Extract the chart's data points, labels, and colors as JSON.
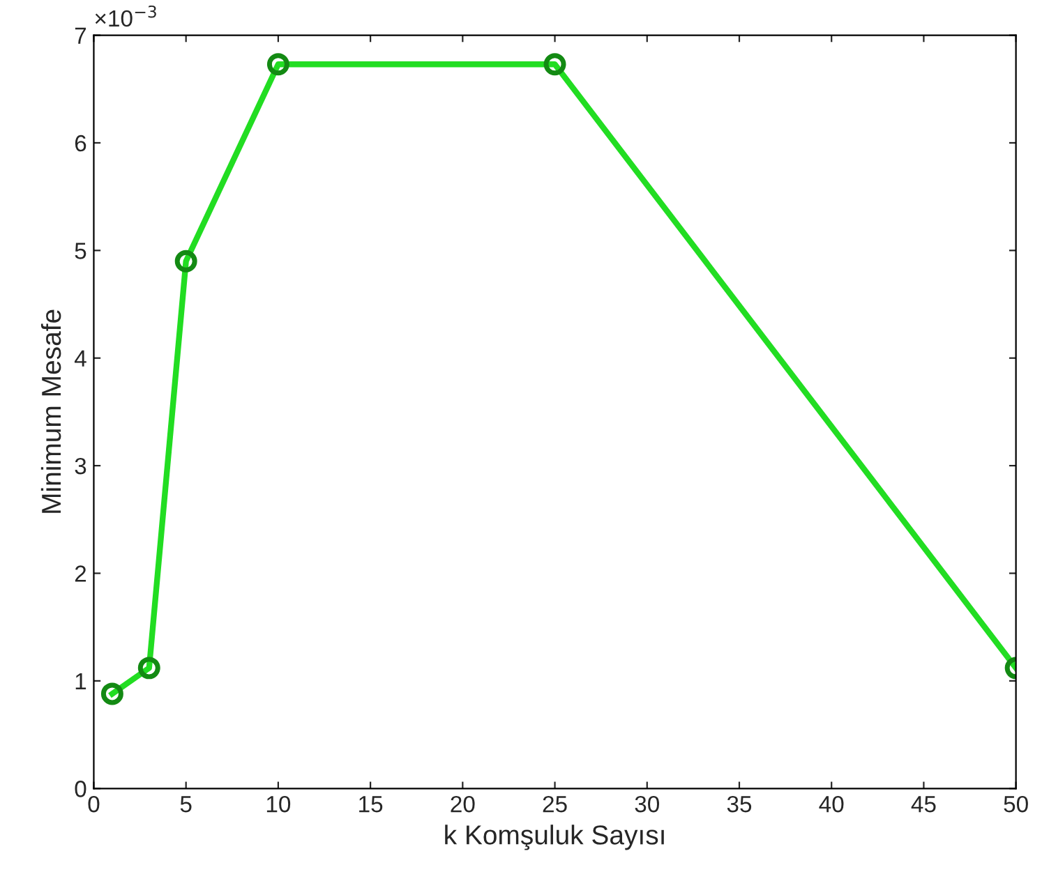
{
  "chart_data": {
    "type": "line",
    "xlabel": "k Komşuluk Sayısı",
    "ylabel": "Minimum Mesafe",
    "x": [
      1,
      3,
      5,
      10,
      25,
      50
    ],
    "series": [
      {
        "color": "#22dd22",
        "values": [
          0.88,
          1.12,
          4.9,
          6.73,
          6.73,
          1.12
        ]
      }
    ],
    "marker": "circle",
    "line_style": "solid",
    "grid": false,
    "legend": false,
    "xlim": [
      0,
      50
    ],
    "xticks": [
      0,
      5,
      10,
      15,
      20,
      25,
      30,
      35,
      40,
      45,
      50
    ],
    "ylim": [
      0,
      7
    ],
    "yticks": [
      0,
      1,
      2,
      3,
      4,
      5,
      6,
      7
    ],
    "annotations": [
      "×10$^{−3}$"
    ]
  }
}
